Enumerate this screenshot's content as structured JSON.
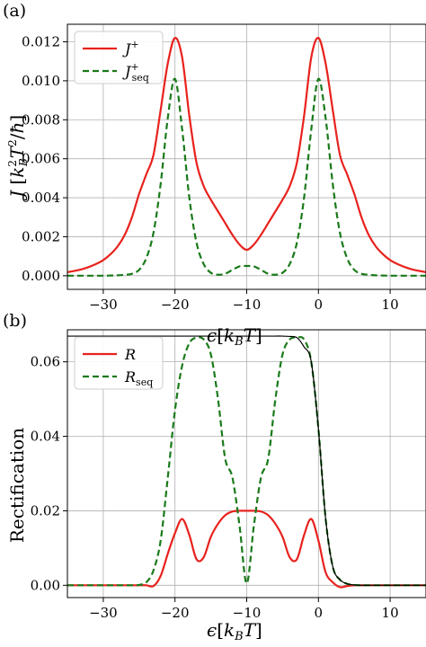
{
  "chart_data": [
    {
      "panel_label": "(a)",
      "type": "line",
      "xlabel": "ϵ[k_B T]",
      "ylabel": "J [k_B^2 T^2/ħ]",
      "xlim": [
        -35,
        15
      ],
      "ylim": [
        -0.0007,
        0.0129
      ],
      "xticks": [
        -30,
        -20,
        -10,
        0,
        10
      ],
      "yticks": [
        0.0,
        0.002,
        0.004,
        0.006,
        0.008,
        0.01,
        0.012
      ],
      "ytick_labels": [
        "0.000",
        "0.002",
        "0.004",
        "0.006",
        "0.008",
        "0.010",
        "0.012"
      ],
      "grid": true,
      "legend_position": "top-left",
      "legend": [
        "J⁺",
        "J⁺_seq"
      ],
      "x": [
        -35,
        -34,
        -33,
        -32,
        -31,
        -30,
        -29,
        -28,
        -27,
        -26,
        -25,
        -24,
        -23,
        -22,
        -21,
        -20,
        -19,
        -18,
        -17,
        -16,
        -15,
        -14,
        -13,
        -12,
        -11,
        -10,
        -9,
        -8,
        -7,
        -6,
        -5,
        -4,
        -3,
        -2,
        -1,
        0,
        1,
        2,
        3,
        4,
        5,
        6,
        7,
        8,
        9,
        10,
        11,
        12,
        13,
        14,
        15
      ],
      "series": [
        {
          "name": "J⁺",
          "color": "#e8221d",
          "dash": "solid",
          "values": [
            0.00018,
            0.00025,
            0.00033,
            0.00045,
            0.0006,
            0.0008,
            0.0011,
            0.0015,
            0.0021,
            0.003,
            0.0042,
            0.0052,
            0.0062,
            0.0085,
            0.0109,
            0.0122,
            0.0112,
            0.0082,
            0.0058,
            0.0046,
            0.0039,
            0.0033,
            0.0027,
            0.0021,
            0.0016,
            0.00133,
            0.0016,
            0.0021,
            0.0027,
            0.0033,
            0.0039,
            0.0046,
            0.0058,
            0.0082,
            0.0112,
            0.0122,
            0.0109,
            0.0085,
            0.0062,
            0.0052,
            0.0042,
            0.003,
            0.0021,
            0.0015,
            0.0011,
            0.0008,
            0.0006,
            0.00045,
            0.00033,
            0.00025,
            0.00018
          ]
        },
        {
          "name": "J⁺_seq",
          "color": "#1a7a1a",
          "dash": "dashed",
          "values": [
            0,
            0,
            0,
            0,
            0,
            0,
            1e-05,
            2e-05,
            5e-05,
            0.0001,
            0.0003,
            0.0009,
            0.0022,
            0.0047,
            0.0081,
            0.0101,
            0.0075,
            0.004,
            0.0017,
            0.0006,
            0.00015,
            5e-05,
            0.0001,
            0.0003,
            0.00048,
            0.0005,
            0.00048,
            0.0003,
            0.0001,
            5e-05,
            0.00015,
            0.0006,
            0.0017,
            0.004,
            0.0075,
            0.0101,
            0.0081,
            0.0047,
            0.0022,
            0.0009,
            0.0003,
            0.0001,
            5e-05,
            2e-05,
            1e-05,
            0,
            0,
            0,
            0,
            0,
            0
          ]
        }
      ]
    },
    {
      "panel_label": "(b)",
      "type": "line",
      "xlabel": "ϵ[k_B T]",
      "ylabel": "Rectification",
      "xlim": [
        -35,
        15
      ],
      "ylim": [
        -0.0033,
        0.0686
      ],
      "xticks": [
        -30,
        -20,
        -10,
        0,
        10
      ],
      "yticks": [
        0.0,
        0.02,
        0.04,
        0.06
      ],
      "ytick_labels": [
        "0.00",
        "0.02",
        "0.04",
        "0.06"
      ],
      "grid": true,
      "legend_position": "top-left",
      "legend": [
        "R",
        "R_seq"
      ],
      "x": [
        -35,
        -34,
        -33,
        -32,
        -31,
        -30,
        -29,
        -28,
        -27,
        -26,
        -25,
        -24,
        -23,
        -22,
        -21,
        -20,
        -19,
        -18,
        -17,
        -16,
        -15,
        -14,
        -13,
        -12,
        -11,
        -10,
        -9,
        -8,
        -7,
        -6,
        -5,
        -4,
        -3,
        -2,
        -1,
        0,
        1,
        2,
        3,
        4,
        5,
        6,
        7,
        8,
        9,
        10,
        11,
        12,
        13,
        14,
        15
      ],
      "series": [
        {
          "name": "R",
          "color": "#e8221d",
          "dash": "solid",
          "values": [
            0,
            0,
            0,
            0,
            0,
            0,
            0,
            0,
            0,
            0,
            0,
            0,
            -0.0002,
            0.0025,
            0.0085,
            0.014,
            0.0178,
            0.0135,
            0.007,
            0.0075,
            0.013,
            0.0165,
            0.0188,
            0.0198,
            0.02,
            0.02,
            0.02,
            0.0198,
            0.0188,
            0.0165,
            0.013,
            0.0075,
            0.007,
            0.0135,
            0.0178,
            0.012,
            0.0035,
            0.0008,
            -0.0005,
            -0.0002,
            0,
            0,
            0,
            0,
            0,
            0,
            0,
            0,
            0,
            0,
            0
          ]
        },
        {
          "name": "R_seq",
          "color": "#1a7a1a",
          "dash": "dashed",
          "values": [
            0,
            0,
            0,
            0,
            0,
            0,
            0,
            0,
            0,
            0,
            0.0001,
            0.0008,
            0.004,
            0.012,
            0.029,
            0.047,
            0.059,
            0.065,
            0.0665,
            0.066,
            0.062,
            0.05,
            0.034,
            0.029,
            0.016,
            0.0005,
            0.016,
            0.029,
            0.034,
            0.05,
            0.062,
            0.066,
            0.0665,
            0.066,
            0.06,
            0.042,
            0.018,
            0.005,
            0.0015,
            0.0004,
            0.0001,
            0,
            0,
            0,
            0,
            0,
            0,
            0,
            0,
            0,
            0
          ]
        },
        {
          "name": "",
          "color": "#000000",
          "dash": "solid",
          "values": [
            0.0669,
            0.0669,
            0.0669,
            0.0669,
            0.0669,
            0.0669,
            0.0669,
            0.0669,
            0.0669,
            0.0669,
            0.0669,
            0.0669,
            0.0669,
            0.0669,
            0.0669,
            0.0669,
            0.0669,
            0.0669,
            0.0669,
            0.0669,
            0.0669,
            0.0669,
            0.0669,
            0.0669,
            0.0669,
            0.0669,
            0.0669,
            0.0669,
            0.0669,
            0.0669,
            0.0669,
            0.0668,
            0.0665,
            0.064,
            0.06,
            0.042,
            0.018,
            0.005,
            0.0015,
            0.0004,
            0.0001,
            0,
            0,
            0,
            0,
            0,
            0,
            0,
            0,
            0,
            0
          ]
        }
      ]
    }
  ]
}
